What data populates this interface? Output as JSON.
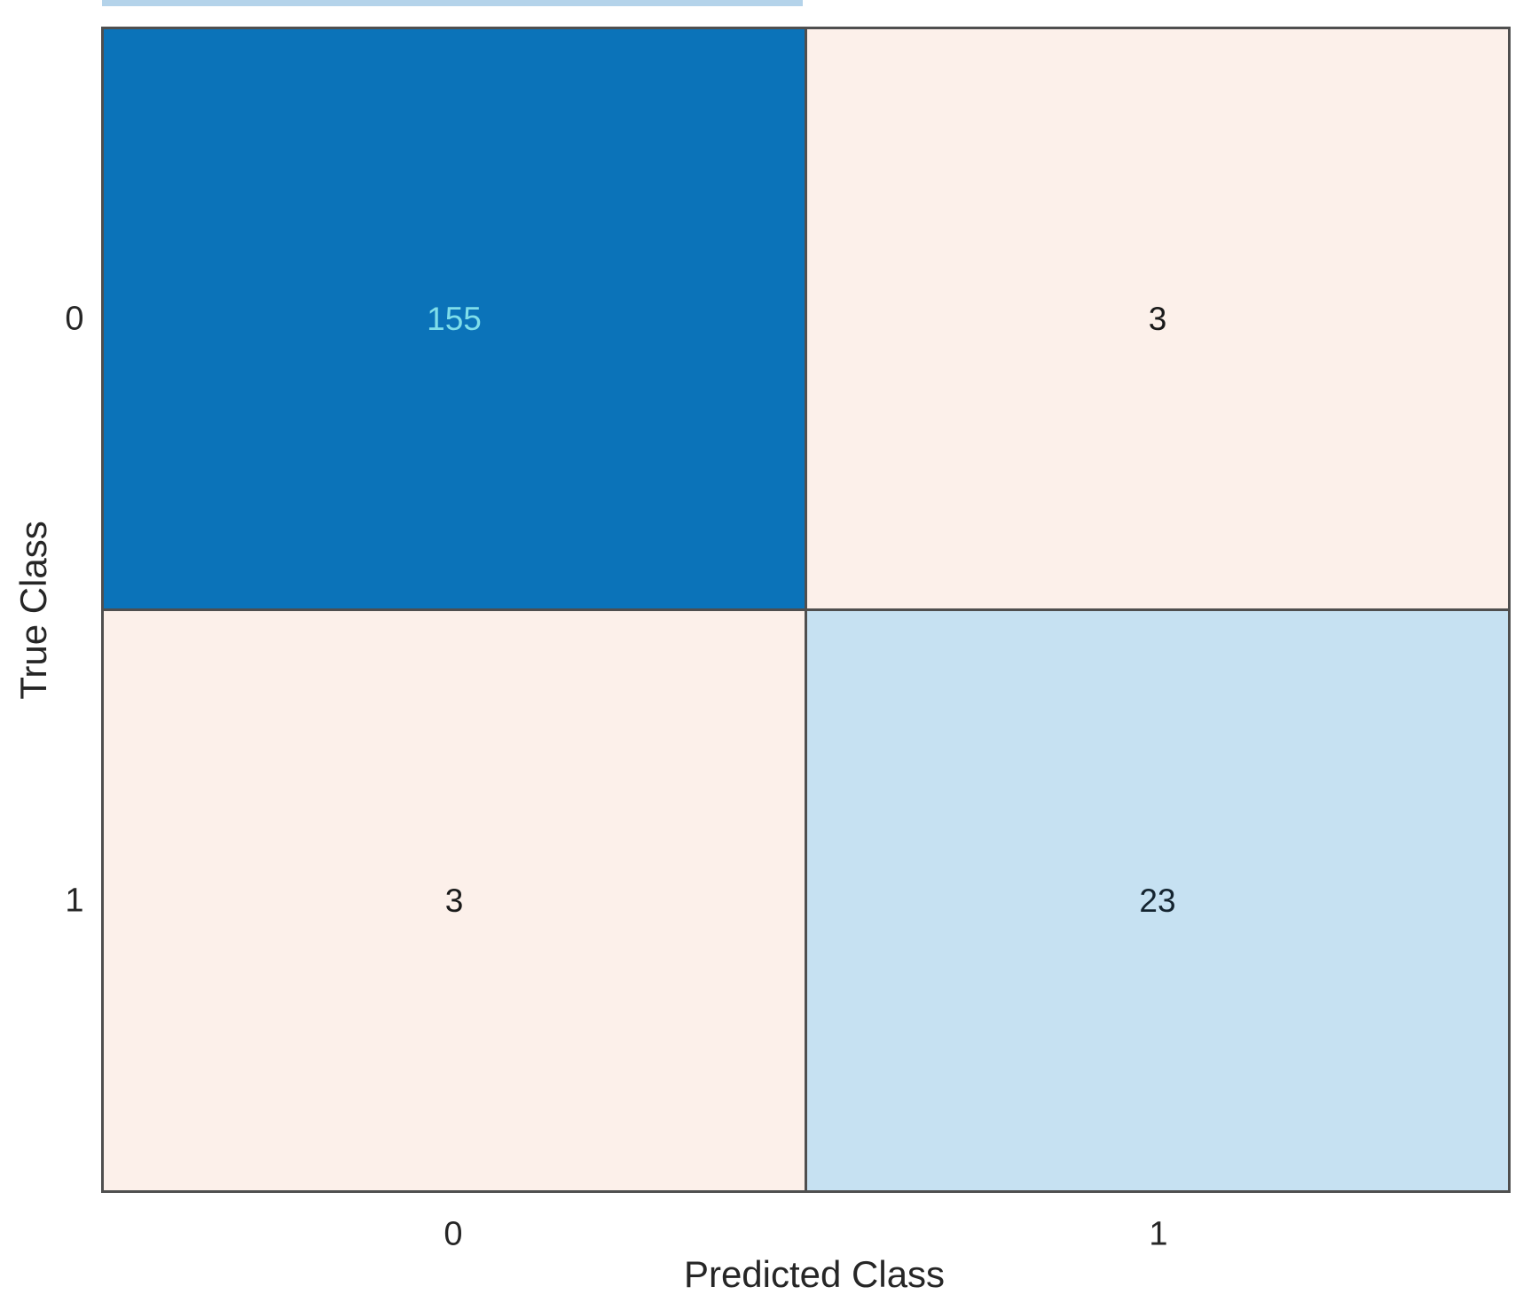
{
  "chart_data": {
    "type": "heatmap",
    "subtype": "confusion-matrix",
    "title": "",
    "xlabel": "Predicted Class",
    "ylabel": "True Class",
    "x_categories": [
      "0",
      "1"
    ],
    "y_categories": [
      "0",
      "1"
    ],
    "matrix": [
      [
        155,
        3
      ],
      [
        3,
        23
      ]
    ],
    "layout": {
      "grid": "2x2",
      "legend": "none",
      "colorbar": "none"
    },
    "colors": {
      "cell_true0_pred0_fill": "#0b73b9",
      "cell_true0_pred0_text": "#7fdeea",
      "cell_true0_pred1_fill": "#fcf0ea",
      "cell_true0_pred1_text": "#1a1a1a",
      "cell_true1_pred0_fill": "#fcf0ea",
      "cell_true1_pred0_text": "#1a1a1a",
      "cell_true1_pred1_fill": "#c6e1f2",
      "cell_true1_pred1_text": "#142430",
      "grid_border": "#4f4f4f",
      "axis_text": "#262626",
      "background": "#ffffff",
      "top_artifact_line": "#1777bd"
    }
  }
}
